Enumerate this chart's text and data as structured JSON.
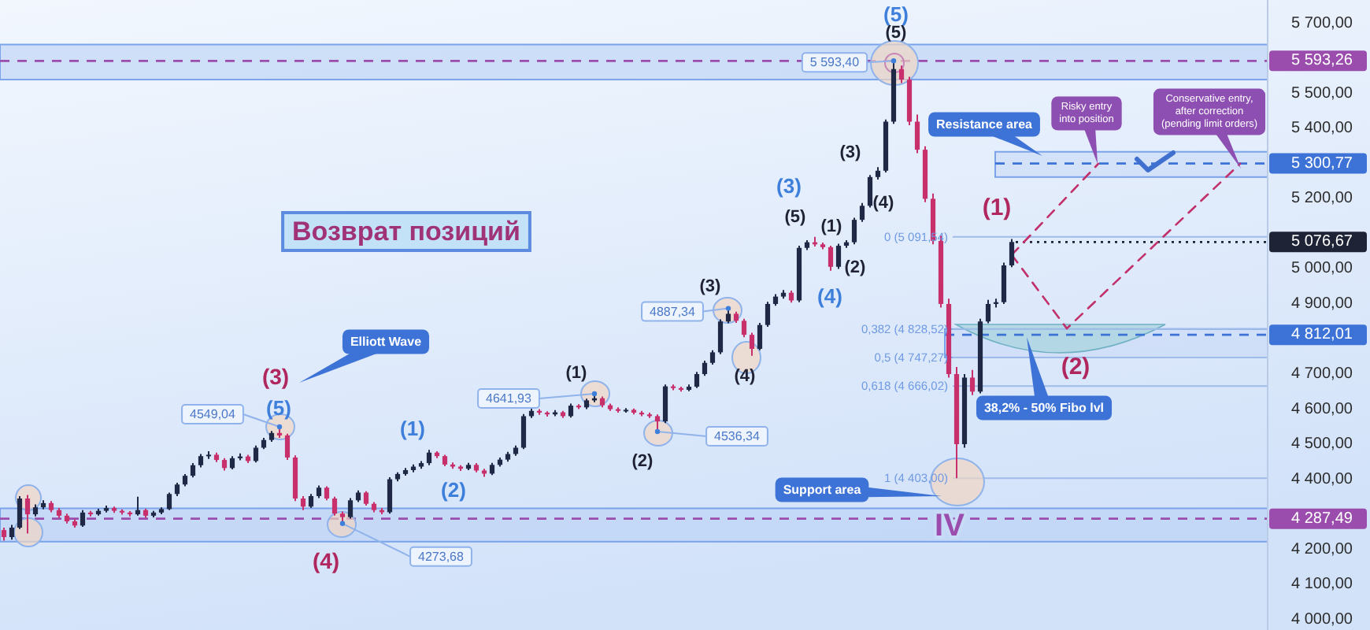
{
  "chart_data": {
    "type": "candlestick",
    "title": "Возврат позиций",
    "categories": [
      null,
      null,
      null,
      null,
      null,
      null,
      null,
      null,
      null,
      null,
      null,
      null,
      null,
      null,
      null,
      null,
      null,
      null,
      null,
      null,
      null,
      null,
      null,
      null,
      null,
      null,
      null,
      null,
      null,
      null,
      null,
      null,
      null,
      null,
      null,
      null,
      null,
      null,
      null,
      null,
      null,
      null,
      null,
      null,
      null,
      null,
      null,
      null,
      null,
      null,
      null,
      null,
      null,
      null,
      null,
      null,
      null,
      null,
      null,
      null,
      null,
      null,
      null,
      null,
      null,
      null,
      null,
      null,
      null,
      null,
      null,
      null,
      null,
      null,
      null,
      null,
      null,
      null,
      null,
      null,
      null,
      null,
      null,
      null,
      null,
      null,
      null,
      null,
      null,
      null,
      null,
      null,
      null,
      null,
      null,
      null,
      null,
      null,
      null,
      null,
      null,
      null,
      null,
      null,
      null,
      null,
      null,
      null,
      null,
      null,
      null,
      null,
      null,
      null,
      null,
      null,
      null,
      null,
      null,
      null,
      null,
      null,
      null,
      null,
      null,
      null,
      null,
      null,
      null,
      null,
      null,
      null,
      null,
      null,
      null,
      null,
      null,
      null,
      null,
      null,
      null,
      null,
      null,
      null,
      null,
      null,
      null,
      null,
      null,
      null,
      null,
      null,
      null,
      null,
      null,
      null,
      null,
      null,
      null,
      null,
      null
    ],
    "ohlc": [
      [
        4255,
        4262,
        4225,
        4235
      ],
      [
        4235,
        4270,
        4228,
        4262
      ],
      [
        4262,
        4352,
        4258,
        4345
      ],
      [
        4345,
        4355,
        4245,
        4300
      ],
      [
        4300,
        4328,
        4294,
        4320
      ],
      [
        4320,
        4340,
        4314,
        4332
      ],
      [
        4332,
        4338,
        4306,
        4312
      ],
      [
        4312,
        4318,
        4290,
        4296
      ],
      [
        4296,
        4302,
        4274,
        4280
      ],
      [
        4280,
        4286,
        4262,
        4268
      ],
      [
        4268,
        4312,
        4264,
        4305
      ],
      [
        4305,
        4310,
        4294,
        4300
      ],
      [
        4300,
        4316,
        4296,
        4310
      ],
      [
        4310,
        4325,
        4305,
        4318
      ],
      [
        4318,
        4322,
        4304,
        4310
      ],
      [
        4310,
        4314,
        4299,
        4305
      ],
      [
        4305,
        4309,
        4294,
        4300
      ],
      [
        4300,
        4350,
        4296,
        4312
      ],
      [
        4312,
        4316,
        4290,
        4296
      ],
      [
        4296,
        4310,
        4291,
        4305
      ],
      [
        4305,
        4320,
        4300,
        4315
      ],
      [
        4315,
        4362,
        4312,
        4358
      ],
      [
        4358,
        4390,
        4352,
        4385
      ],
      [
        4385,
        4415,
        4380,
        4410
      ],
      [
        4410,
        4446,
        4405,
        4440
      ],
      [
        4440,
        4472,
        4434,
        4466
      ],
      [
        4466,
        4480,
        4458,
        4470
      ],
      [
        4470,
        4476,
        4449,
        4455
      ],
      [
        4455,
        4460,
        4425,
        4432
      ],
      [
        4432,
        4466,
        4428,
        4460
      ],
      [
        4460,
        4474,
        4454,
        4465
      ],
      [
        4465,
        4470,
        4446,
        4452
      ],
      [
        4452,
        4496,
        4448,
        4490
      ],
      [
        4490,
        4518,
        4486,
        4512
      ],
      [
        4512,
        4538,
        4507,
        4532
      ],
      [
        4532,
        4549.04,
        4518,
        4525
      ],
      [
        4525,
        4530,
        4455,
        4462
      ],
      [
        4462,
        4468,
        4338,
        4345
      ],
      [
        4345,
        4352,
        4312,
        4322
      ],
      [
        4322,
        4358,
        4318,
        4352
      ],
      [
        4352,
        4382,
        4346,
        4376
      ],
      [
        4376,
        4380,
        4340,
        4345
      ],
      [
        4345,
        4350,
        4296,
        4302
      ],
      [
        4302,
        4308,
        4273.68,
        4292
      ],
      [
        4292,
        4346,
        4288,
        4340
      ],
      [
        4340,
        4368,
        4335,
        4362
      ],
      [
        4362,
        4366,
        4325,
        4330
      ],
      [
        4330,
        4335,
        4306,
        4312
      ],
      [
        4312,
        4318,
        4300,
        4306
      ],
      [
        4306,
        4406,
        4302,
        4400
      ],
      [
        4400,
        4420,
        4394,
        4415
      ],
      [
        4415,
        4432,
        4410,
        4426
      ],
      [
        4426,
        4442,
        4420,
        4436
      ],
      [
        4436,
        4452,
        4430,
        4446
      ],
      [
        4446,
        4484,
        4440,
        4476
      ],
      [
        4476,
        4480,
        4460,
        4466
      ],
      [
        4466,
        4470,
        4437,
        4442
      ],
      [
        4442,
        4448,
        4430,
        4436
      ],
      [
        4436,
        4440,
        4424,
        4430
      ],
      [
        4430,
        4447,
        4426,
        4441
      ],
      [
        4441,
        4446,
        4420,
        4425
      ],
      [
        4425,
        4430,
        4407,
        4416
      ],
      [
        4416,
        4447,
        4412,
        4441
      ],
      [
        4441,
        4462,
        4436,
        4456
      ],
      [
        4456,
        4478,
        4450,
        4472
      ],
      [
        4472,
        4496,
        4467,
        4490
      ],
      [
        4490,
        4586,
        4486,
        4580
      ],
      [
        4580,
        4602,
        4575,
        4595
      ],
      [
        4595,
        4600,
        4584,
        4590
      ],
      [
        4590,
        4594,
        4579,
        4585
      ],
      [
        4585,
        4597,
        4580,
        4591
      ],
      [
        4591,
        4595,
        4575,
        4580
      ],
      [
        4580,
        4616,
        4576,
        4610
      ],
      [
        4610,
        4614,
        4600,
        4605
      ],
      [
        4605,
        4630,
        4600,
        4625
      ],
      [
        4625,
        4641.93,
        4620,
        4631
      ],
      [
        4631,
        4636,
        4605,
        4611
      ],
      [
        4611,
        4616,
        4595,
        4600
      ],
      [
        4600,
        4605,
        4590,
        4595
      ],
      [
        4595,
        4603,
        4590,
        4598
      ],
      [
        4598,
        4602,
        4585,
        4590
      ],
      [
        4590,
        4595,
        4580,
        4585
      ],
      [
        4585,
        4590,
        4575,
        4580
      ],
      [
        4580,
        4585,
        4536.34,
        4565
      ],
      [
        4565,
        4670,
        4560,
        4665
      ],
      [
        4665,
        4670,
        4654,
        4660
      ],
      [
        4660,
        4664,
        4650,
        4655
      ],
      [
        4655,
        4670,
        4651,
        4664
      ],
      [
        4664,
        4706,
        4660,
        4700
      ],
      [
        4700,
        4738,
        4695,
        4732
      ],
      [
        4732,
        4768,
        4727,
        4762
      ],
      [
        4762,
        4856,
        4757,
        4850
      ],
      [
        4850,
        4887.34,
        4845,
        4872
      ],
      [
        4872,
        4878,
        4846,
        4852
      ],
      [
        4852,
        4858,
        4805,
        4812
      ],
      [
        4812,
        4818,
        4752,
        4772
      ],
      [
        4772,
        4846,
        4768,
        4840
      ],
      [
        4840,
        4906,
        4835,
        4900
      ],
      [
        4900,
        4928,
        4895,
        4921
      ],
      [
        4921,
        4940,
        4915,
        4932
      ],
      [
        4932,
        4938,
        4904,
        4910
      ],
      [
        4910,
        5066,
        4905,
        5060
      ],
      [
        5060,
        5082,
        5054,
        5076
      ],
      [
        5076,
        5091.54,
        5064,
        5070
      ],
      [
        5070,
        5075,
        5056,
        5062
      ],
      [
        5062,
        5066,
        4995,
        5006
      ],
      [
        5006,
        5072,
        5000,
        5066
      ],
      [
        5066,
        5082,
        5060,
        5076
      ],
      [
        5076,
        5146,
        5070,
        5140
      ],
      [
        5140,
        5188,
        5134,
        5180
      ],
      [
        5180,
        5268,
        5175,
        5262
      ],
      [
        5262,
        5290,
        5255,
        5280
      ],
      [
        5280,
        5426,
        5275,
        5420
      ],
      [
        5420,
        5593.4,
        5414,
        5570
      ],
      [
        5570,
        5580,
        5530,
        5540
      ],
      [
        5540,
        5548,
        5410,
        5420
      ],
      [
        5420,
        5440,
        5330,
        5340
      ],
      [
        5340,
        5350,
        5190,
        5200
      ],
      [
        5200,
        5215,
        5070,
        5080
      ],
      [
        5080,
        5095,
        4890,
        4900
      ],
      [
        4900,
        4915,
        4690,
        4700
      ],
      [
        4700,
        4720,
        4403,
        4500
      ],
      [
        4500,
        4700,
        4490,
        4690
      ],
      [
        4690,
        4712,
        4640,
        4650
      ],
      [
        4650,
        4858,
        4645,
        4850
      ],
      [
        4850,
        4912,
        4845,
        4900
      ],
      [
        4900,
        4915,
        4890,
        4905
      ],
      [
        4905,
        5018,
        4900,
        5010
      ],
      [
        5010,
        5085,
        5005,
        5076.67
      ],
      null,
      null,
      null,
      null,
      null,
      null,
      null,
      null,
      null,
      null,
      null,
      null,
      null,
      null,
      null,
      null,
      null,
      null,
      null,
      null,
      null,
      null,
      null,
      null,
      null,
      null,
      null,
      null,
      null,
      null,
      null,
      null
    ],
    "colors": [
      "#c8306c",
      "#1f2945",
      "#1f2945",
      "#c8306c",
      "#1f2945",
      "#1f2945",
      "#c8306c",
      "#c8306c",
      "#c8306c",
      "#c8306c",
      "#1f2945",
      "#c8306c",
      "#1f2945",
      "#1f2945",
      "#c8306c",
      "#c8306c",
      "#c8306c",
      "#1f2945",
      "#c8306c",
      "#1f2945",
      "#1f2945",
      "#1f2945",
      "#1f2945",
      "#1f2945",
      "#1f2945",
      "#1f2945",
      "#1f2945",
      "#c8306c",
      "#c8306c",
      "#1f2945",
      "#1f2945",
      "#c8306c",
      "#1f2945",
      "#1f2945",
      "#1f2945",
      "#c8306c",
      "#c8306c",
      "#c8306c",
      "#c8306c",
      "#1f2945",
      "#1f2945",
      "#c8306c",
      "#c8306c",
      "#c8306c",
      "#1f2945",
      "#1f2945",
      "#c8306c",
      "#c8306c",
      "#c8306c",
      "#1f2945",
      "#1f2945",
      "#1f2945",
      "#1f2945",
      "#1f2945",
      "#1f2945",
      "#c8306c",
      "#c8306c",
      "#c8306c",
      "#c8306c",
      "#1f2945",
      "#c8306c",
      "#c8306c",
      "#1f2945",
      "#1f2945",
      "#1f2945",
      "#1f2945",
      "#1f2945",
      "#1f2945",
      "#c8306c",
      "#c8306c",
      "#1f2945",
      "#c8306c",
      "#1f2945",
      "#c8306c",
      "#1f2945",
      "#1f2945",
      "#c8306c",
      "#c8306c",
      "#c8306c",
      "#1f2945",
      "#c8306c",
      "#c8306c",
      "#c8306c",
      "#c8306c",
      "#1f2945",
      "#c8306c",
      "#c8306c",
      "#1f2945",
      "#1f2945",
      "#1f2945",
      "#1f2945",
      "#1f2945",
      "#1f2945",
      "#c8306c",
      "#c8306c",
      "#c8306c",
      "#1f2945",
      "#1f2945",
      "#1f2945",
      "#1f2945",
      "#c8306c",
      "#1f2945",
      "#1f2945",
      "#c8306c",
      "#c8306c",
      "#c8306c",
      "#1f2945",
      "#1f2945",
      "#1f2945",
      "#1f2945",
      "#1f2945",
      "#1f2945",
      "#1f2945",
      "#1f2945",
      "#c8306c",
      "#c8306c",
      "#c8306c",
      "#c8306c",
      "#c8306c",
      "#c8306c",
      "#c8306c",
      "#c8306c",
      "#1f2945",
      "#c8306c",
      "#1f2945",
      "#1f2945",
      "#1f2945",
      "#1f2945",
      "#1f2945",
      null,
      null,
      null,
      null,
      null,
      null,
      null,
      null,
      null,
      null,
      null,
      null,
      null,
      null,
      null,
      null,
      null,
      null,
      null,
      null,
      null,
      null,
      null,
      null,
      null,
      null,
      null,
      null,
      null,
      null,
      null,
      null
    ],
    "series": [
      {
        "type": "line",
        "color": "#c2306b",
        "values": [
          null,
          null,
          null,
          null,
          null,
          null,
          null,
          null,
          null,
          null,
          null,
          null,
          null,
          null,
          null,
          null,
          null,
          null,
          null,
          null,
          null,
          null,
          null,
          null,
          null,
          null,
          null,
          null,
          null,
          null,
          null,
          null,
          null,
          null,
          null,
          null,
          null,
          null,
          null,
          null,
          null,
          null,
          null,
          null,
          null,
          null,
          null,
          null,
          null,
          null,
          null,
          null,
          null,
          null,
          null,
          null,
          null,
          null,
          null,
          null,
          null,
          null,
          null,
          null,
          null,
          null,
          null,
          null,
          null,
          null,
          null,
          null,
          null,
          null,
          null,
          null,
          null,
          null,
          null,
          null,
          null,
          null,
          null,
          null,
          null,
          null,
          null,
          null,
          null,
          null,
          null,
          null,
          null,
          null,
          null,
          null,
          null,
          null,
          null,
          null,
          null,
          null,
          null,
          null,
          null,
          null,
          null,
          null,
          null,
          null,
          null,
          null,
          null,
          null,
          null,
          null,
          null,
          null,
          null,
          null,
          null,
          null,
          null,
          null,
          null,
          null,
          null,
          null,
          5040,
          null,
          null,
          null,
          null,
          null,
          null,
          null,
          null,
          null,
          null,
          5300,
          null,
          null,
          null,
          null,
          null,
          null,
          null,
          null,
          null,
          null,
          null,
          null,
          null,
          null,
          null,
          null,
          null,
          null,
          null,
          null,
          null
        ]
      },
      {
        "type": "line",
        "color": "#c2306b",
        "values": [
          null,
          null,
          null,
          null,
          null,
          null,
          null,
          null,
          null,
          null,
          null,
          null,
          null,
          null,
          null,
          null,
          null,
          null,
          null,
          null,
          null,
          null,
          null,
          null,
          null,
          null,
          null,
          null,
          null,
          null,
          null,
          null,
          null,
          null,
          null,
          null,
          null,
          null,
          null,
          null,
          null,
          null,
          null,
          null,
          null,
          null,
          null,
          null,
          null,
          null,
          null,
          null,
          null,
          null,
          null,
          null,
          null,
          null,
          null,
          null,
          null,
          null,
          null,
          null,
          null,
          null,
          null,
          null,
          null,
          null,
          null,
          null,
          null,
          null,
          null,
          null,
          null,
          null,
          null,
          null,
          null,
          null,
          null,
          null,
          null,
          null,
          null,
          null,
          null,
          null,
          null,
          null,
          null,
          null,
          null,
          null,
          null,
          null,
          null,
          null,
          null,
          null,
          null,
          null,
          null,
          null,
          null,
          null,
          null,
          null,
          null,
          null,
          null,
          null,
          null,
          null,
          null,
          null,
          null,
          null,
          null,
          null,
          null,
          null,
          null,
          null,
          null,
          null,
          5040,
          null,
          null,
          null,
          null,
          null,
          null,
          4830,
          null,
          null,
          null,
          null,
          null,
          null,
          null,
          null,
          null,
          null,
          null,
          null,
          null,
          null,
          null,
          null,
          null,
          null,
          null,
          null,
          null,
          5300,
          null,
          null,
          null
        ]
      }
    ],
    "line_style": "dashed",
    "ylim": [
      3970,
      5767
    ],
    "yticks": [
      {
        "value": 5700,
        "label": "5 700,00"
      },
      {
        "value": 5500,
        "label": "5 500,00"
      },
      {
        "value": 5400,
        "label": "5 400,00"
      },
      {
        "value": 5200,
        "label": "5 200,00"
      },
      {
        "value": 5000,
        "label": "5 000,00"
      },
      {
        "value": 4900,
        "label": "4 900,00"
      },
      {
        "value": 4700,
        "label": "4 700,00"
      },
      {
        "value": 4600,
        "label": "4 600,00"
      },
      {
        "value": 4500,
        "label": "4 500,00"
      },
      {
        "value": 4400,
        "label": "4 400,00"
      },
      {
        "value": 4200,
        "label": "4 200,00"
      },
      {
        "value": 4100,
        "label": "4 100,00"
      },
      {
        "value": 4000,
        "label": "4 000,00"
      }
    ],
    "tick_labels": "y",
    "ref_lines": [
      {
        "axis": "y",
        "value": 5593.26,
        "label": "5 593,26",
        "color": "#9b4dad",
        "line_style": "dashed"
      },
      {
        "axis": "y",
        "value": 5300.77,
        "label": "5 300,77",
        "color": "#3d73d6",
        "line_style": "dashed"
      },
      {
        "axis": "y",
        "value": 5076.67,
        "label": "5 076,67",
        "color": "#1e2436",
        "line_style": "dotted"
      },
      {
        "axis": "y",
        "value": 4812.01,
        "label": "4 812,01",
        "color": "#3d73d6",
        "line_style": "dashed"
      },
      {
        "axis": "y",
        "value": 4287.49,
        "label": "4 287,49",
        "color": "#9b4dad",
        "line_style": "dashed"
      },
      {
        "axis": "y",
        "value": 5091.54,
        "label": "0 (5 091,54)"
      },
      {
        "axis": "y",
        "value": 4828.52,
        "label": "0,382 (4 828,52)"
      },
      {
        "axis": "y",
        "value": 4747.27,
        "label": "0,5 (4 747,27)"
      },
      {
        "axis": "y",
        "value": 4666.02,
        "label": "0,618 (4 666,02)"
      },
      {
        "axis": "y",
        "value": 4403.0,
        "label": "1 (4 403,00)"
      }
    ],
    "bands": [
      {
        "axis": "y",
        "from": 5540,
        "to": 5640,
        "color": "#b9d0f5"
      },
      {
        "axis": "y",
        "from": 4222,
        "to": 4317,
        "color": "#b9d0f5"
      },
      {
        "axis": "y",
        "from": 5262,
        "to": 5334,
        "label": "Resistance area",
        "color": "#c9dbf7"
      },
      {
        "axis": "y",
        "from": 4747.27,
        "to": 4828.52,
        "label": "38,2% - 50% Fibo lvl",
        "color": "#c9dbf7"
      }
    ],
    "annotations": [
      "(5)",
      "(5)",
      "(3)",
      "(5)",
      "(4)",
      "(1)",
      "(2)",
      "(1)",
      "(2)",
      "(3)",
      "(4)",
      "(5)",
      "(1)",
      "(2)",
      "(4)",
      "(3)",
      "(3)",
      "(4)",
      "(1)",
      "(2)",
      "IV",
      "4549,04",
      {
        "text": "4273,68",
        "y": 4273.68
      },
      "4641,93",
      "4536,34",
      {
        "text": "4887,34",
        "y": 4887.34
      },
      {
        "text": "5 593,40",
        "y": 5593.4
      },
      "Elliott Wave",
      "Support area",
      "Risky entry into position",
      "Conservative entry, after correction (pending limit orders)"
    ]
  }
}
